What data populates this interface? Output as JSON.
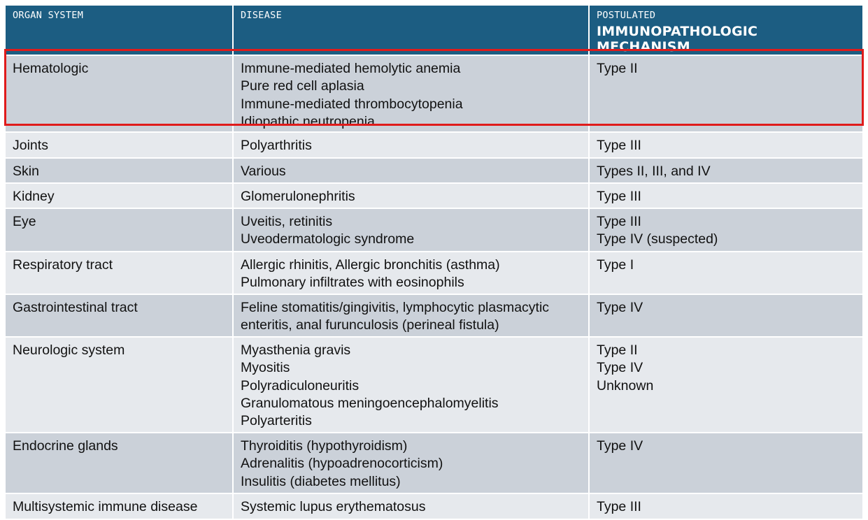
{
  "header": {
    "col1": "ORGAN SYSTEM",
    "col2": "DISEASE",
    "col3_top": "POSTULATED",
    "col3_bottom": "IMMUNOPATHOLOGIC MECHANISM"
  },
  "rows": [
    {
      "organ": "Hematologic",
      "diseases": [
        "Immune-mediated hemolytic anemia",
        "Pure red cell aplasia",
        "Immune-mediated thrombocytopenia",
        "Idiopathic neutropenia"
      ],
      "mechanisms": [
        "Type II"
      ]
    },
    {
      "organ": "Joints",
      "diseases": [
        "Polyarthritis"
      ],
      "mechanisms": [
        "Type III"
      ]
    },
    {
      "organ": "Skin",
      "diseases": [
        "Various"
      ],
      "mechanisms": [
        "Types II, III, and IV"
      ]
    },
    {
      "organ": "Kidney",
      "diseases": [
        "Glomerulonephritis"
      ],
      "mechanisms": [
        "Type III"
      ]
    },
    {
      "organ": "Eye",
      "diseases": [
        "Uveitis, retinitis",
        "Uveodermatologic syndrome"
      ],
      "mechanisms": [
        "Type III",
        "Type IV (suspected)"
      ]
    },
    {
      "organ": "Respiratory tract",
      "diseases": [
        "Allergic rhinitis, Allergic bronchitis (asthma)",
        "Pulmonary infiltrates with eosinophils"
      ],
      "mechanisms": [
        "Type I"
      ]
    },
    {
      "organ": "Gastrointestinal tract",
      "diseases": [
        "Feline stomatitis/gingivitis, lymphocytic plasmacytic",
        "enteritis, anal furunculosis (perineal fistula)"
      ],
      "mechanisms": [
        "Type IV"
      ]
    },
    {
      "organ": "Neurologic system",
      "diseases": [
        "Myasthenia gravis",
        "Myositis",
        "Polyradiculoneuritis",
        "Granulomatous meningoencephalomyelitis",
        "Polyarteritis"
      ],
      "mechanisms": [
        "Type II",
        "Type IV",
        "Unknown"
      ]
    },
    {
      "organ": "Endocrine glands",
      "diseases": [
        "Thyroiditis (hypothyroidism)",
        "Adrenalitis (hypoadrenocorticism)",
        "Insulitis (diabetes mellitus)"
      ],
      "mechanisms": [
        "Type IV"
      ]
    },
    {
      "organ": "Multisystemic immune disease",
      "diseases": [
        "Systemic lupus erythematosus"
      ],
      "mechanisms": [
        "Type III"
      ]
    }
  ],
  "colors": {
    "header_bg": "#1c5d82",
    "row_dark": "#cbd1d9",
    "row_light": "#e6e9ed",
    "highlight_border": "#e01b1b"
  }
}
